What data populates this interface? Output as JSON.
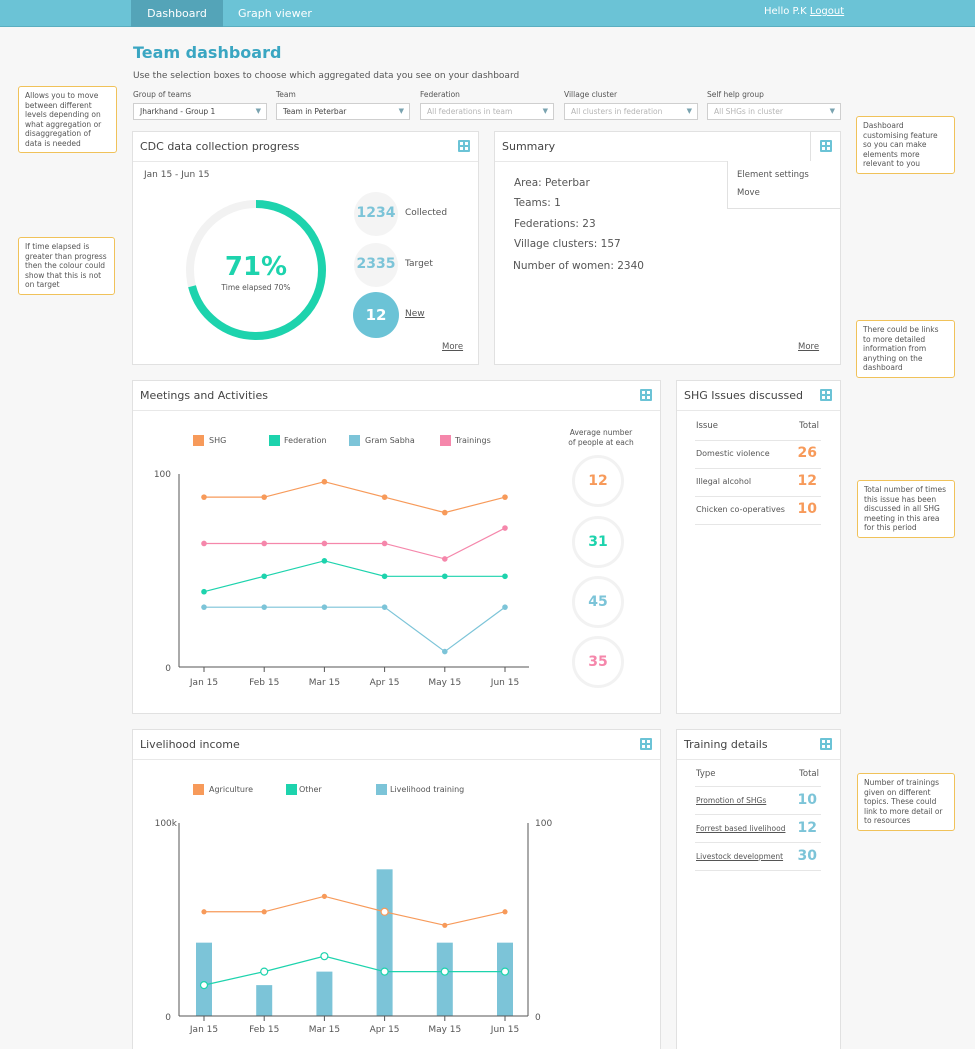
{
  "nav": {
    "tabs": [
      "Dashboard",
      "Graph viewer"
    ],
    "greeting": "Hello P.K",
    "logout": "Logout"
  },
  "page": {
    "title": "Team dashboard",
    "subtitle": "Use the selection boxes to choose which aggregated data you see on your dashboard"
  },
  "filters": [
    {
      "label": "Group of teams",
      "value": "Jharkhand - Group 1"
    },
    {
      "label": "Team",
      "value": "Team in Peterbar"
    },
    {
      "label": "Federation",
      "placeholder": "All federations in team"
    },
    {
      "label": "Village cluster",
      "placeholder": "All clusters in federation"
    },
    {
      "label": "Self help group",
      "placeholder": "All SHGs in cluster"
    }
  ],
  "notes": [
    "Allows you to move between different levels depending on what aggregation or disaggregation of data is needed",
    "If time elapsed is greater than progress then the colour could show that this is not on target",
    "Dashboard customising feature so you can make elements more relevant to you",
    "There could be links to more detailed information from anything on the dashboard",
    "Total number of times this issue has been discussed in all SHG meeting in this area for this period",
    "Number of trainings given on different topics. These could link to more detail or to resources"
  ],
  "cdc": {
    "title": "CDC data collection progress",
    "date_range": "Jan 15 - Jun 15",
    "percent_label": "71%",
    "progress": 0.71,
    "elapsed_label": "Time elapsed 70%",
    "collected": "1234",
    "collected_label": "Collected",
    "target": "2335",
    "target_label": "Target",
    "new": "12",
    "new_label": "New",
    "more": "More"
  },
  "summary": {
    "title": "Summary",
    "lines": [
      "Area: Peterbar",
      "Teams: 1",
      "Federations: 23",
      "Village clusters: 157",
      "Number of women: 2340"
    ],
    "menu": [
      "Element settings",
      "Move"
    ],
    "more": "More"
  },
  "meetings": {
    "title": "Meetings and Activities",
    "avg_label_1": "Average number",
    "avg_label_2": "of people at each",
    "averages": [
      "12",
      "31",
      "45",
      "35"
    ]
  },
  "issues": {
    "title": "SHG Issues discussed",
    "col_issue": "Issue",
    "col_total": "Total",
    "rows": [
      {
        "issue": "Domestic violence",
        "total": "26"
      },
      {
        "issue": "Illegal alcohol",
        "total": "12"
      },
      {
        "issue": "Chicken co-operatives",
        "total": "10"
      }
    ]
  },
  "livelihood": {
    "title": "Livelihood income"
  },
  "training": {
    "title": "Training details",
    "col_type": "Type",
    "col_total": "Total",
    "rows": [
      {
        "type": "Promotion of SHGs",
        "total": "10"
      },
      {
        "type": "Forrest based livelihood",
        "total": "12"
      },
      {
        "type": "Livestock development",
        "total": "30"
      }
    ]
  },
  "colors": {
    "shg": "#f79a5a",
    "federation": "#1dd3ad",
    "gram_sabha": "#7cc4d8",
    "trainings": "#f587ab",
    "accent": "#6bc3d6"
  },
  "chart_data": [
    {
      "type": "line",
      "categories": [
        "Jan 15",
        "Feb 15",
        "Mar 15",
        "Apr 15",
        "May 15",
        "Jun 15"
      ],
      "ylim": [
        0,
        100
      ],
      "yticks": [
        "0",
        "100"
      ],
      "series": [
        {
          "name": "SHG",
          "values": [
            88,
            88,
            96,
            88,
            80,
            88
          ]
        },
        {
          "name": "Federation",
          "values": [
            39,
            47,
            55,
            47,
            47,
            47
          ]
        },
        {
          "name": "Gram Sabha",
          "values": [
            31,
            31,
            31,
            31,
            8,
            31
          ]
        },
        {
          "name": "Trainings",
          "values": [
            64,
            64,
            64,
            64,
            56,
            72
          ]
        }
      ],
      "legend": "top"
    },
    {
      "type": "bar",
      "categories": [
        "Jan 15",
        "Feb 15",
        "Mar 15",
        "Apr 15",
        "May 15",
        "Jun 15"
      ],
      "ylim_left": [
        0,
        100000
      ],
      "yticks_left": [
        "0",
        "100k"
      ],
      "ylim_right": [
        0,
        100
      ],
      "yticks_right": [
        "0",
        "100"
      ],
      "series": [
        {
          "name": "Agriculture",
          "type": "line",
          "axis": "left",
          "values": [
            54000,
            54000,
            62000,
            54000,
            47000,
            54000
          ]
        },
        {
          "name": "Other",
          "type": "line",
          "axis": "left",
          "values": [
            16000,
            23000,
            31000,
            23000,
            23000,
            23000
          ]
        },
        {
          "name": "Livelihood training",
          "type": "bar",
          "axis": "right",
          "values": [
            38,
            16,
            23,
            76,
            38,
            38
          ]
        }
      ],
      "legend": "top"
    }
  ]
}
